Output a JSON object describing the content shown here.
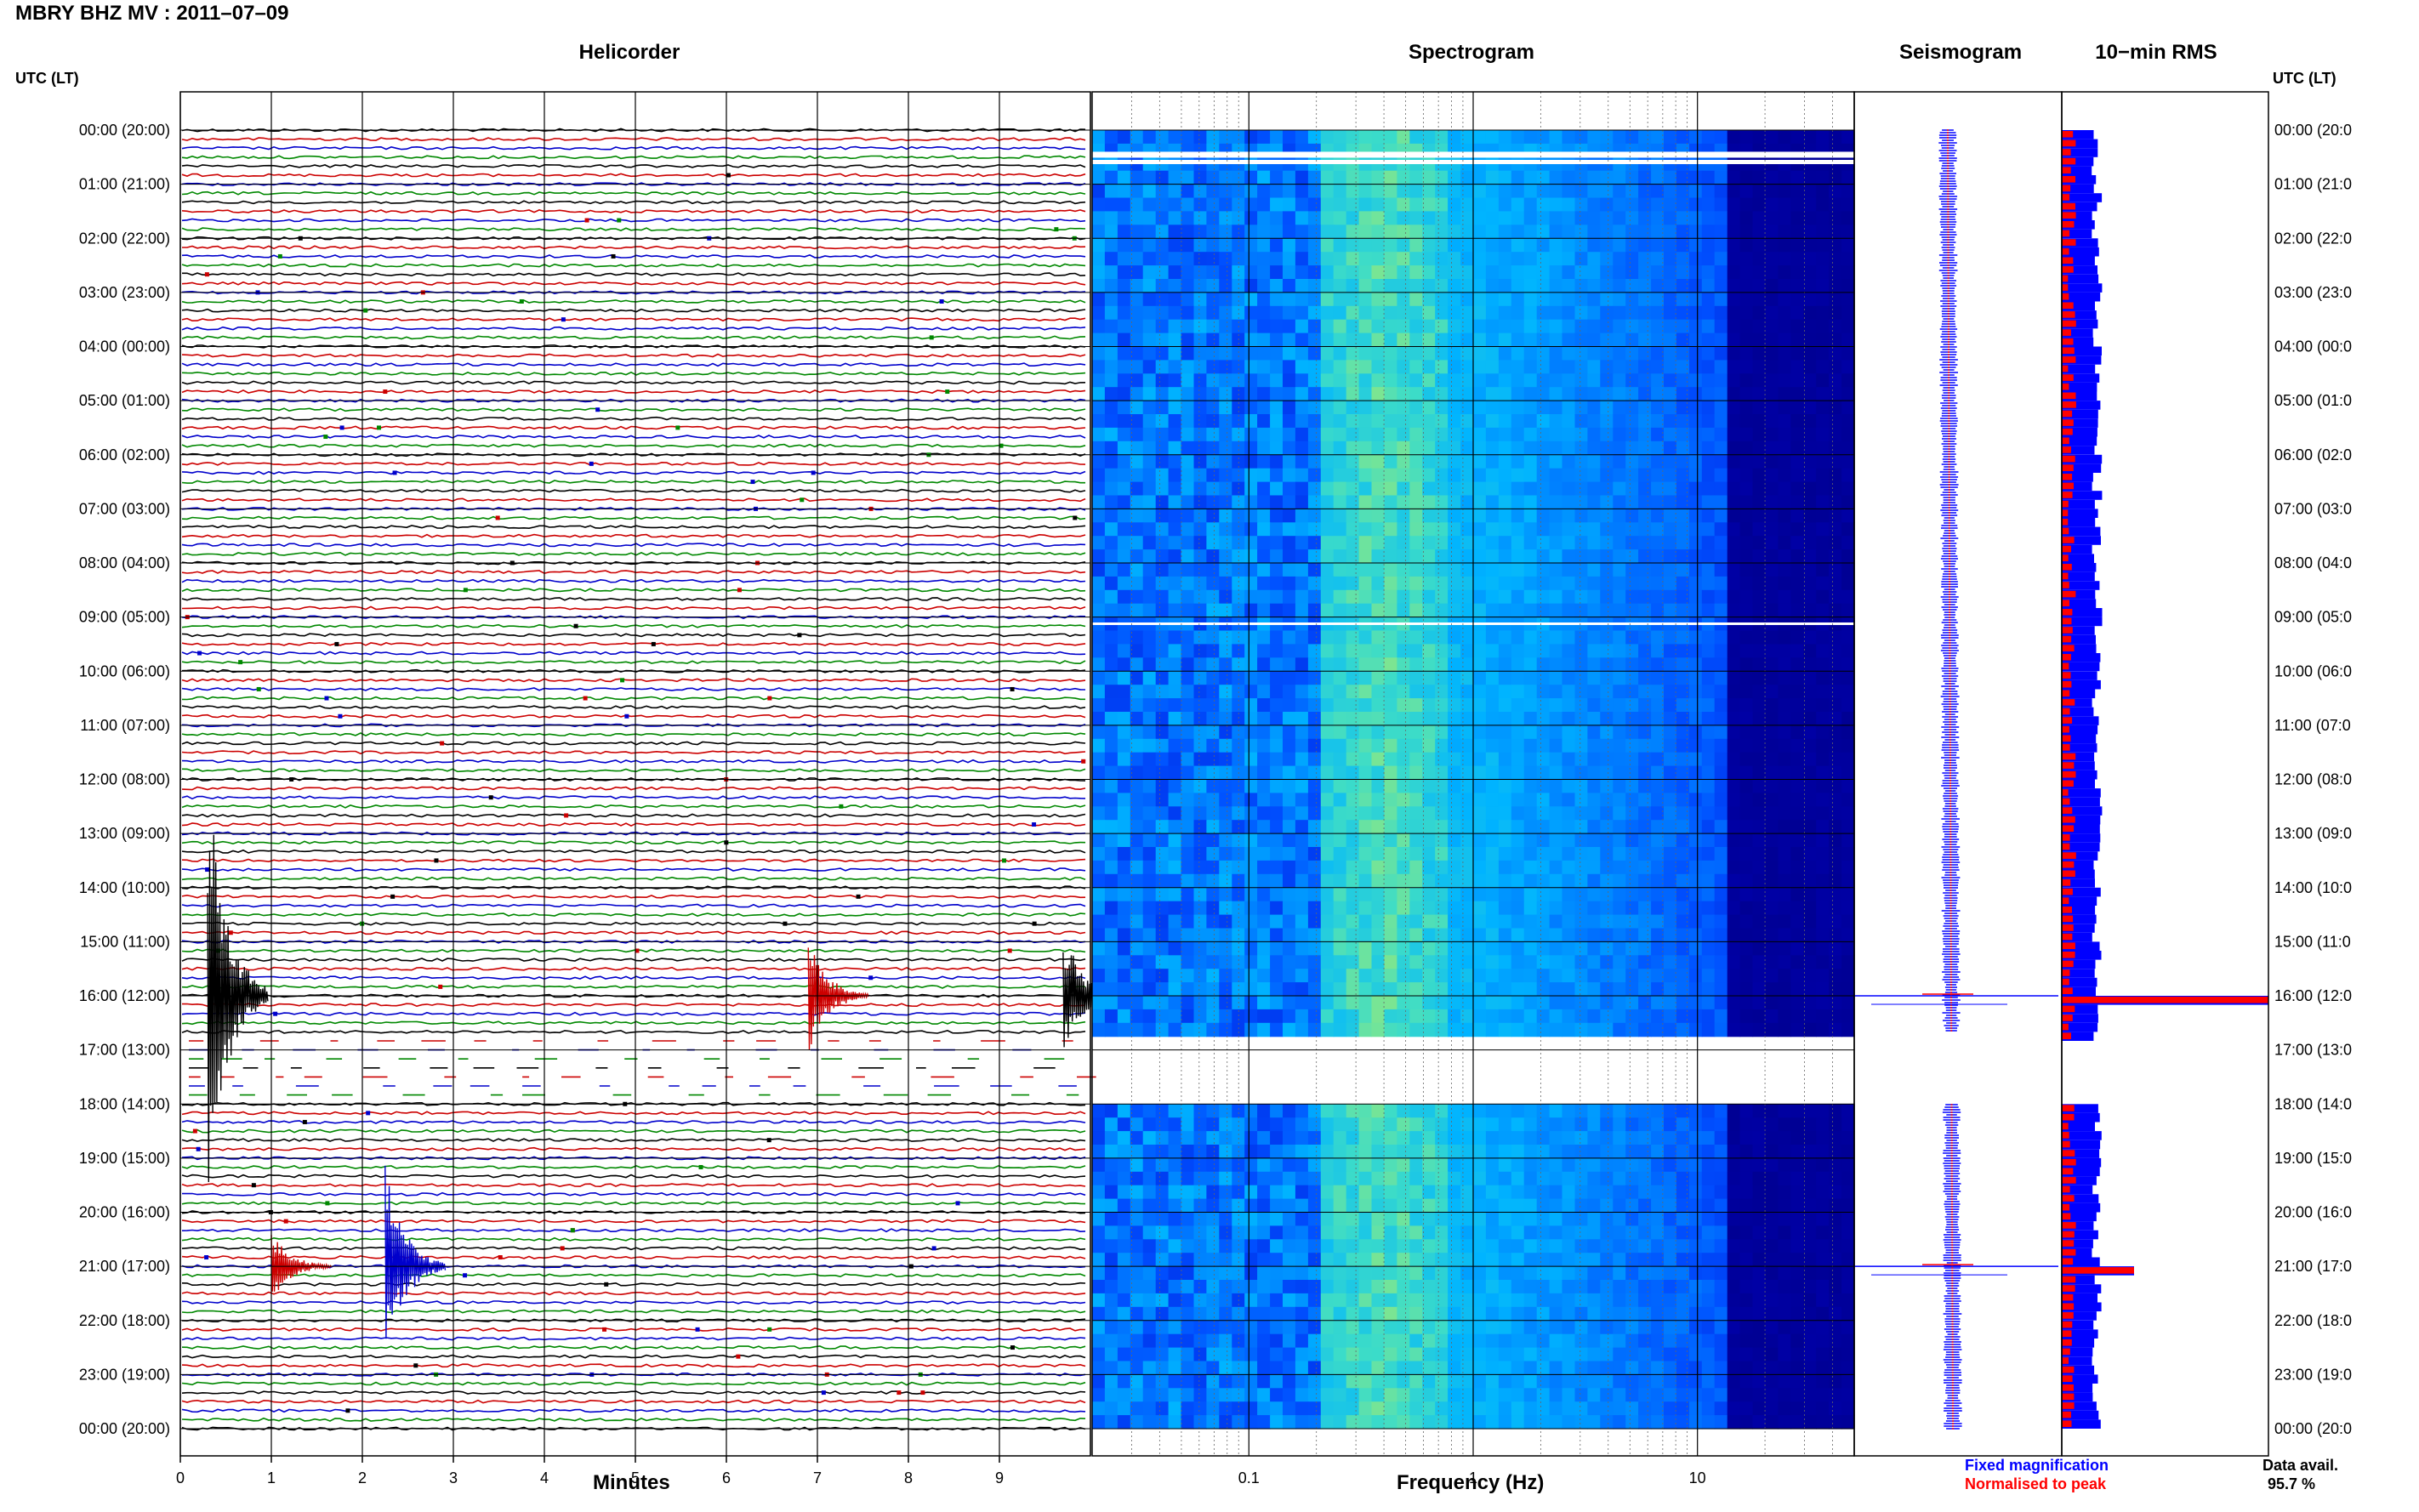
{
  "title": "MBRY BHZ MV : 2011–07–09",
  "panels": {
    "helicorder": "Helicorder",
    "spectrogram": "Spectrogram",
    "seismogram": "Seismogram",
    "rms": "10−min RMS"
  },
  "timezone_label_left": "UTC (LT)",
  "timezone_label_right": "UTC (LT)",
  "x_label_helicorder": "Minutes",
  "x_label_spectrogram": "Frequency (Hz)",
  "legend": {
    "fixed": "Fixed magnification",
    "normalised": "Normalised to peak",
    "fixed_color": "#0000ff",
    "normalised_color": "#ff0000"
  },
  "data_avail_label": "Data avail.",
  "data_avail_value": "95.7 %",
  "chart_data": {
    "type": "heatmap",
    "helicorder": {
      "x_ticks": [
        "0",
        "1",
        "2",
        "3",
        "4",
        "5",
        "6",
        "7",
        "8",
        "9"
      ],
      "x_range_minutes": [
        0,
        10
      ],
      "trace_colors": [
        "#000000",
        "#cc0000",
        "#0000cc",
        "#008800"
      ],
      "traces_per_hour": 6,
      "events": [
        {
          "hour": 16.0,
          "minute": 0.3,
          "amplitude": 1.0,
          "color": "#000000"
        },
        {
          "hour": 16.0,
          "minute": 6.9,
          "amplitude": 0.25,
          "color": "#cc0000"
        },
        {
          "hour": 16.0,
          "minute": 9.7,
          "amplitude": 0.3,
          "color": "#000000"
        },
        {
          "hour": 21.0,
          "minute": 2.25,
          "amplitude": 0.45,
          "color": "#0000cc"
        },
        {
          "hour": 21.0,
          "minute": 1.0,
          "amplitude": 0.15,
          "color": "#cc0000"
        }
      ],
      "gap_hours": [
        16.67,
        18.0
      ]
    },
    "spectrogram": {
      "x_scale": "log",
      "x_ticks": [
        "0.1",
        "1",
        "10"
      ],
      "x_range_hz": [
        0.02,
        50
      ],
      "gap_hours": [
        16.67,
        18.0
      ],
      "peak_band_hz": [
        0.2,
        0.6
      ]
    },
    "seismogram": {
      "series": [
        {
          "name": "Fixed magnification",
          "color": "#0000ff"
        },
        {
          "name": "Normalised to peak",
          "color": "#ff0000"
        }
      ],
      "event_hours": [
        16.0,
        21.0
      ]
    },
    "rms": {
      "interval_minutes": 10,
      "blue_baseline": 0.17,
      "red_baseline": 0.05,
      "peaks": [
        {
          "hour": 16.0,
          "value": 1.0
        },
        {
          "hour": 21.0,
          "value": 0.35
        }
      ]
    },
    "y_ticks": [
      "00:00 (20:00)",
      "01:00 (21:00)",
      "02:00 (22:00)",
      "03:00 (23:00)",
      "04:00 (00:00)",
      "05:00 (01:00)",
      "06:00 (02:00)",
      "07:00 (03:00)",
      "08:00 (04:00)",
      "09:00 (05:00)",
      "10:00 (06:00)",
      "11:00 (07:00)",
      "12:00 (08:00)",
      "13:00 (09:00)",
      "14:00 (10:00)",
      "15:00 (11:00)",
      "16:00 (12:00)",
      "17:00 (13:00)",
      "18:00 (14:00)",
      "19:00 (15:00)",
      "20:00 (16:00)",
      "21:00 (17:00)",
      "22:00 (18:00)",
      "23:00 (19:00)",
      "00:00 (20:00)"
    ],
    "y_ticks_right": [
      "00:00 (20:0",
      "01:00 (21:0",
      "02:00 (22:0",
      "03:00 (23:0",
      "04:00 (00:0",
      "05:00 (01:0",
      "06:00 (02:0",
      "07:00 (03:0",
      "08:00 (04:0",
      "09:00 (05:0",
      "10:00 (06:0",
      "11:00 (07:0",
      "12:00 (08:0",
      "13:00 (09:0",
      "14:00 (10:0",
      "15:00 (11:0",
      "16:00 (12:0",
      "17:00 (13:0",
      "18:00 (14:0",
      "19:00 (15:0",
      "20:00 (16:0",
      "21:00 (17:0",
      "22:00 (18:0",
      "23:00 (19:0",
      "00:00 (20:0"
    ]
  }
}
